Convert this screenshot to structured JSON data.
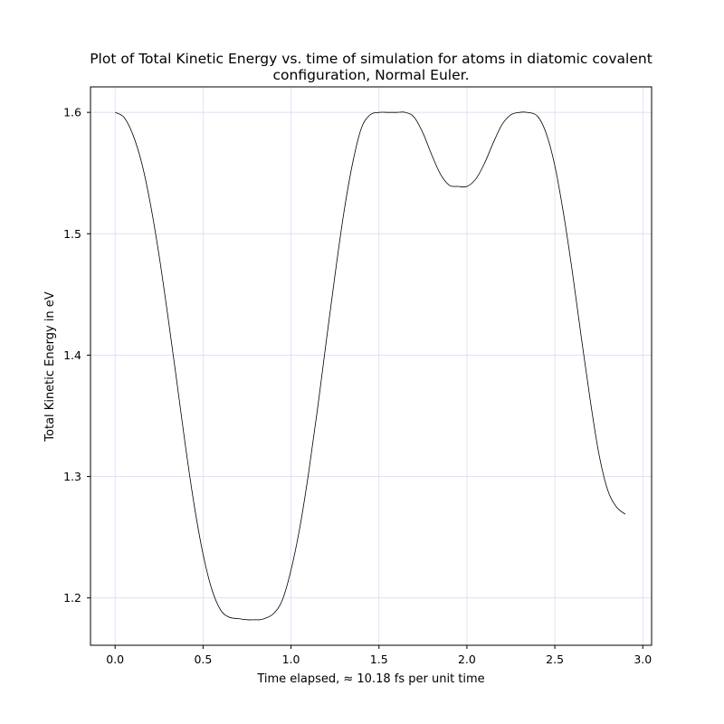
{
  "chart_data": {
    "type": "line",
    "title_lines": [
      "Plot of Total Kinetic Energy vs. time of simulation for atoms in diatomic covalent",
      "configuration, Normal Euler."
    ],
    "xlabel": "Time elapsed,  ≈ 10.18 fs per unit time",
    "ylabel": "Total Kinetic Energy in eV",
    "xlim": [
      -0.14,
      3.05
    ],
    "ylim": [
      1.161,
      1.621
    ],
    "x_ticks": [
      0.0,
      0.5,
      1.0,
      1.5,
      2.0,
      2.5,
      3.0
    ],
    "x_tick_labels": [
      "0.0",
      "0.5",
      "1.0",
      "1.5",
      "2.0",
      "2.5",
      "3.0"
    ],
    "y_ticks": [
      1.2,
      1.3,
      1.4,
      1.5,
      1.6
    ],
    "y_tick_labels": [
      "1.2",
      "1.3",
      "1.4",
      "1.5",
      "1.6"
    ],
    "grid": true,
    "series": [
      {
        "color": "#000000",
        "x": [
          0.0,
          0.05,
          0.1,
          0.15,
          0.2,
          0.25,
          0.3,
          0.35,
          0.4,
          0.45,
          0.5,
          0.55,
          0.6,
          0.65,
          0.7,
          0.75,
          0.8,
          0.82,
          0.85,
          0.9,
          0.95,
          1.0,
          1.05,
          1.1,
          1.15,
          1.2,
          1.25,
          1.3,
          1.35,
          1.4,
          1.45,
          1.5,
          1.55,
          1.6,
          1.65,
          1.7,
          1.75,
          1.8,
          1.85,
          1.9,
          1.95,
          2.0,
          2.05,
          2.1,
          2.15,
          2.2,
          2.25,
          2.3,
          2.34,
          2.4,
          2.45,
          2.5,
          2.55,
          2.6,
          2.65,
          2.7,
          2.75,
          2.8,
          2.85,
          2.9
        ],
        "y": [
          1.6,
          1.596,
          1.582,
          1.559,
          1.525,
          1.482,
          1.432,
          1.379,
          1.325,
          1.276,
          1.236,
          1.207,
          1.19,
          1.184,
          1.183,
          1.182,
          1.182,
          1.182,
          1.183,
          1.187,
          1.198,
          1.223,
          1.258,
          1.303,
          1.355,
          1.411,
          1.466,
          1.517,
          1.558,
          1.587,
          1.598,
          1.6,
          1.6,
          1.6,
          1.6,
          1.596,
          1.583,
          1.565,
          1.549,
          1.54,
          1.539,
          1.539,
          1.545,
          1.558,
          1.575,
          1.59,
          1.598,
          1.6,
          1.6,
          1.597,
          1.583,
          1.556,
          1.516,
          1.468,
          1.415,
          1.364,
          1.319,
          1.289,
          1.275,
          1.269
        ]
      }
    ]
  }
}
